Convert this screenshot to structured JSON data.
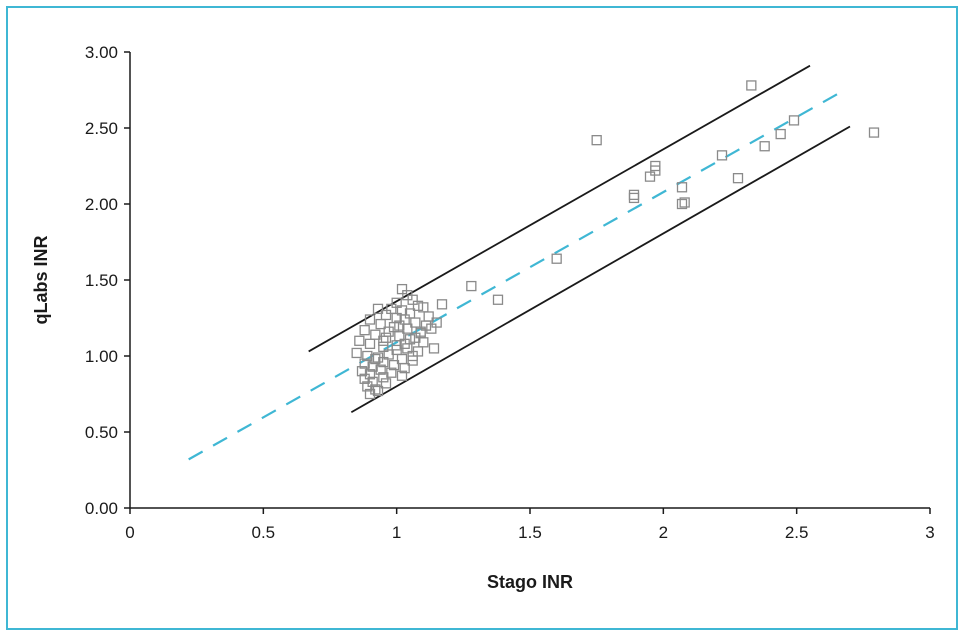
{
  "chart_data": {
    "type": "scatter",
    "xlabel": "Stago INR",
    "ylabel": "qLabs INR",
    "xlim": [
      0,
      3
    ],
    "ylim": [
      0,
      3
    ],
    "x_ticks": [
      "0",
      "0.5",
      "1",
      "1.5",
      "2",
      "2.5",
      "3"
    ],
    "y_ticks": [
      "0.00",
      "0.50",
      "1.00",
      "1.50",
      "2.00",
      "2.50",
      "3.00"
    ],
    "grid": false,
    "legend": "none",
    "colors": {
      "points": "#8a8a8a",
      "fit_line": "#3fb7d4",
      "limit_lines": "#1a1a1a",
      "frame": "#3fb7d4"
    },
    "series": [
      {
        "marker": "open-square",
        "x": [
          1.75,
          2.33,
          2.49,
          2.44,
          2.38,
          2.79,
          2.22,
          2.28,
          1.97,
          1.95,
          1.97,
          1.89,
          1.89,
          2.07,
          2.08,
          2.07,
          1.6,
          1.28,
          1.38,
          1.17,
          1.14,
          1.02,
          1.04,
          1.0,
          1.06,
          1.08,
          0.98,
          1.02,
          1.05,
          1.1,
          1.12,
          0.93,
          0.96,
          1.0,
          1.03,
          1.07,
          1.11,
          0.9,
          0.94,
          0.99,
          1.04,
          1.09,
          0.88,
          0.92,
          0.96,
          1.01,
          1.05,
          1.1,
          0.86,
          0.9,
          0.95,
          1.0,
          1.04,
          1.08,
          0.85,
          0.89,
          0.93,
          0.97,
          1.02,
          1.06,
          0.88,
          0.91,
          0.95,
          0.99,
          1.03,
          0.87,
          0.9,
          0.94,
          0.98,
          1.02,
          0.88,
          0.91,
          0.95,
          0.89,
          0.92,
          0.96,
          0.9,
          0.93,
          1.06,
          1.13,
          1.15,
          1.09,
          1.01,
          0.97,
          1.07,
          1.03,
          1.0,
          0.95,
          0.92
        ],
        "y": [
          2.42,
          2.78,
          2.55,
          2.46,
          2.38,
          2.47,
          2.32,
          2.17,
          2.25,
          2.18,
          2.22,
          2.06,
          2.04,
          2.11,
          2.01,
          2.0,
          1.64,
          1.46,
          1.37,
          1.34,
          1.05,
          1.44,
          1.4,
          1.35,
          1.37,
          1.33,
          1.31,
          1.3,
          1.28,
          1.32,
          1.26,
          1.31,
          1.27,
          1.25,
          1.24,
          1.22,
          1.2,
          1.24,
          1.21,
          1.19,
          1.18,
          1.16,
          1.17,
          1.14,
          1.12,
          1.13,
          1.11,
          1.09,
          1.1,
          1.08,
          1.06,
          1.07,
          1.05,
          1.03,
          1.02,
          1.0,
          0.99,
          1.01,
          0.98,
          0.97,
          0.95,
          0.93,
          0.96,
          0.94,
          0.92,
          0.9,
          0.88,
          0.91,
          0.89,
          0.87,
          0.85,
          0.83,
          0.86,
          0.8,
          0.78,
          0.82,
          0.75,
          0.77,
          1.0,
          1.18,
          1.22,
          1.15,
          1.2,
          1.16,
          1.12,
          1.08,
          1.04,
          1.1,
          0.98
        ]
      }
    ],
    "fit_line": {
      "style": "dashed",
      "x": [
        0.22,
        2.67
      ],
      "y": [
        0.32,
        2.74
      ]
    },
    "limit_lines": [
      {
        "style": "solid",
        "x": [
          0.67,
          2.55
        ],
        "y": [
          1.03,
          2.91
        ]
      },
      {
        "style": "solid",
        "x": [
          0.83,
          2.7
        ],
        "y": [
          0.63,
          2.51
        ]
      }
    ]
  }
}
